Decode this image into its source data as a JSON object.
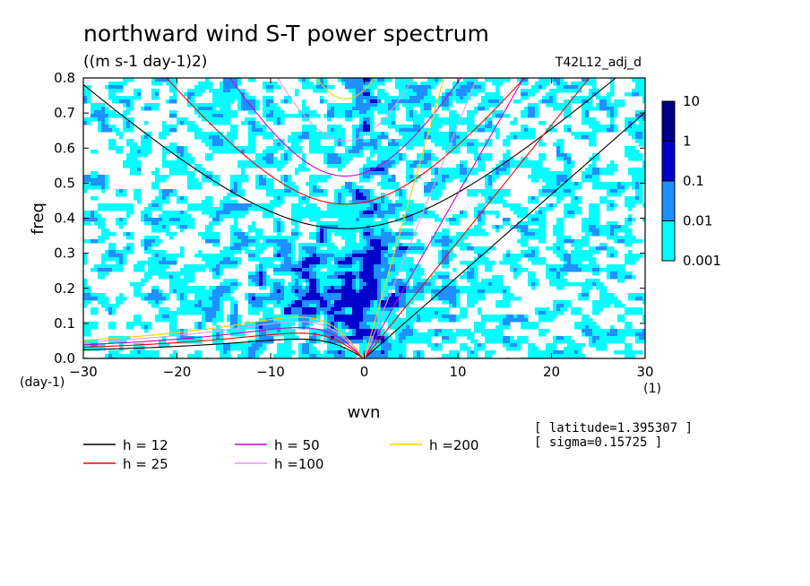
{
  "chart_data": {
    "type": "heatmap",
    "title": "northward wind S-T power spectrum",
    "subtitle": "((m s-1 day-1)2)",
    "run_label": "T42L12_adj_d",
    "xlabel": "wvn",
    "ylabel": "freq",
    "x_unit": "(1)",
    "y_unit": "(day-1)",
    "xlim": [
      -30,
      30
    ],
    "ylim": [
      0,
      0.8
    ],
    "xticks": [
      -30,
      -20,
      -10,
      0,
      10,
      20,
      30
    ],
    "yticks": [
      0.0,
      0.1,
      0.2,
      0.3,
      0.4,
      0.5,
      0.6,
      0.7,
      0.8
    ],
    "ytick_labels": [
      "0.0",
      "0.1",
      "0.2",
      "0.3",
      "0.4",
      "0.5",
      "0.6",
      "0.7",
      "0.8"
    ],
    "xtick_labels": [
      "−30",
      "−20",
      "−10",
      "0",
      "10",
      "20",
      "30"
    ],
    "colorbar": {
      "levels": [
        "0.001",
        "0.01",
        "0.1",
        "1",
        "10"
      ],
      "colors": [
        "#00ffff",
        "#1e90ff",
        "#0000cd",
        "#00008b",
        "#4b0082"
      ]
    },
    "dispersion_curves": [
      {
        "name": "h = 12",
        "color": "#000000"
      },
      {
        "name": "h = 25",
        "color": "#ff0000"
      },
      {
        "name": "h = 50",
        "color": "#cc00cc"
      },
      {
        "name": "h =100",
        "color": "#e699e6"
      },
      {
        "name": "h =200",
        "color": "#ffcc00"
      }
    ],
    "annotations": [
      "[ latitude=1.395307 ]",
      "[ sigma=0.15725 ]"
    ]
  }
}
